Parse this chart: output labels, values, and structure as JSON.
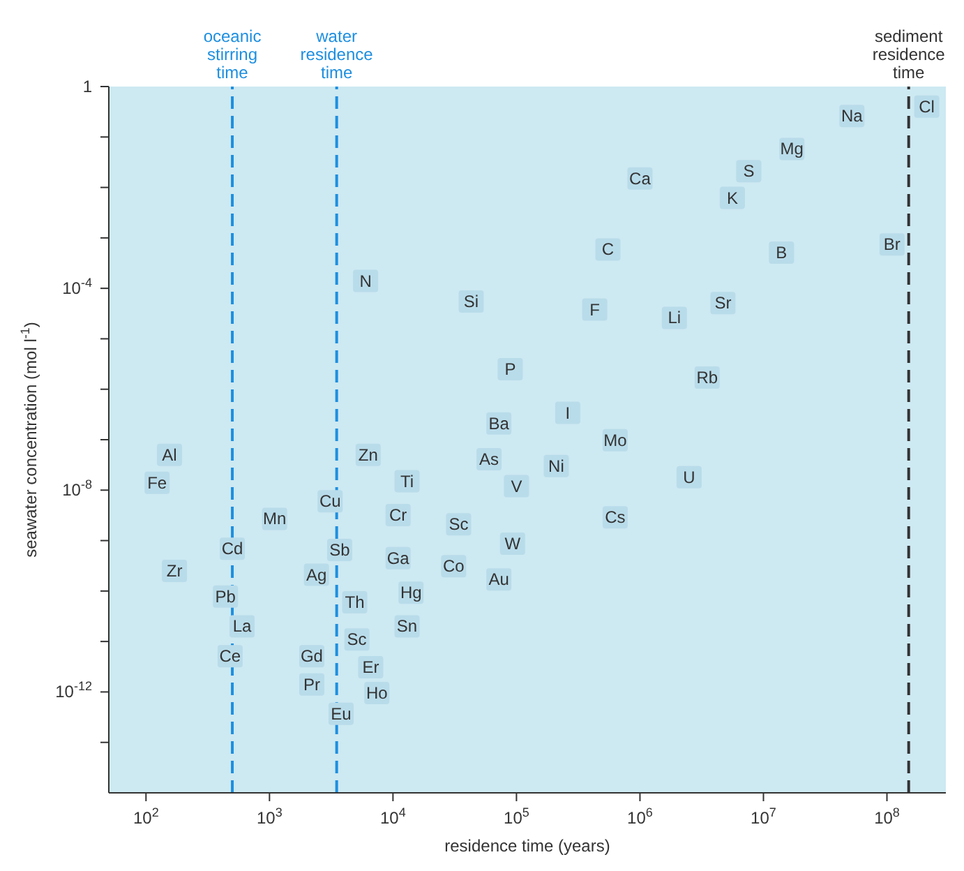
{
  "chart_data": {
    "type": "scatter",
    "xlabel": "residence time (years)",
    "ylabel": "seawater concentration (mol l$^{-1}$)",
    "log": "xy",
    "grid": false,
    "legend": false,
    "marker": "square",
    "xlim": [
      50,
      300000000
    ],
    "ylim": [
      1e-14,
      1
    ],
    "xticks": [
      {
        "value": 100,
        "label": "10$^{2}$"
      },
      {
        "value": 1000,
        "label": "10$^{3}$"
      },
      {
        "value": 10000,
        "label": "10$^{4}$"
      },
      {
        "value": 100000,
        "label": "10$^{5}$"
      },
      {
        "value": 1000000,
        "label": "10$^{6}$"
      },
      {
        "value": 10000000,
        "label": "10$^{7}$"
      },
      {
        "value": 100000000,
        "label": "10$^{8}$"
      }
    ],
    "yticks": [
      {
        "value": 1,
        "label": "1"
      },
      {
        "value": 0.1,
        "label": null
      },
      {
        "value": 0.01,
        "label": null
      },
      {
        "value": 0.001,
        "label": null
      },
      {
        "value": 0.0001,
        "label": "10$^{-4}$"
      },
      {
        "value": 1e-05,
        "label": null
      },
      {
        "value": 1e-06,
        "label": null
      },
      {
        "value": 1e-07,
        "label": null
      },
      {
        "value": 1e-08,
        "label": "10$^{-8}$"
      },
      {
        "value": 1e-09,
        "label": null
      },
      {
        "value": 1e-10,
        "label": null
      },
      {
        "value": 1e-11,
        "label": null
      },
      {
        "value": 1e-12,
        "label": "10$^{-12}$"
      },
      {
        "value": 1e-13,
        "label": null
      }
    ],
    "ref_lines": [
      {
        "axis": "x",
        "value": 500,
        "label": "oceanic stirring time",
        "color": "#1e8fe0",
        "line_style": "dashed"
      },
      {
        "axis": "x",
        "value": 3500,
        "label": "water residence time",
        "color": "#1e8fe0",
        "line_style": "dashed"
      },
      {
        "axis": "x",
        "value": 150000000,
        "label": "sediment residence time",
        "color": "#333333",
        "line_style": "dashed"
      }
    ],
    "series": [
      {
        "color": "#b9dcea",
        "x": [
          52000000,
          210000000,
          17000000,
          7600000,
          1000000,
          5600000,
          550000,
          14000000,
          110000000,
          6000,
          43000,
          430000,
          1900000,
          4700000,
          89000,
          3500000,
          72000,
          260000,
          630000,
          155,
          6300,
          60000,
          210000,
          2500000,
          123,
          13000,
          100000,
          3100,
          1100,
          11000,
          34000,
          630000,
          500,
          3700,
          93000,
          11000,
          170,
          31000,
          72000,
          2400,
          440,
          14000,
          4900,
          600,
          13000,
          5100,
          480,
          2200,
          6600,
          2200,
          7400,
          3800
        ],
        "values": [
          0.26,
          0.4,
          0.058,
          0.021,
          0.015,
          0.0062,
          0.00059,
          0.00051,
          0.00074,
          0.00014,
          5.5e-05,
          3.8e-05,
          2.6e-05,
          5.1e-05,
          2.5e-06,
          1.7e-06,
          2.1e-07,
          3.4e-07,
          9.8e-08,
          5e-08,
          5e-08,
          4.1e-08,
          3e-08,
          1.8e-08,
          1.4e-08,
          1.5e-08,
          1.2e-08,
          6e-09,
          2.7e-09,
          3.2e-09,
          2.1e-09,
          2.9e-09,
          6.9e-10,
          6.5e-10,
          8.7e-10,
          4.5e-10,
          2.5e-10,
          3.1e-10,
          1.7e-10,
          2.1e-10,
          7.8e-11,
          9.3e-11,
          6e-11,
          2e-11,
          2e-11,
          1.1e-11,
          5.1e-12,
          5.1e-12,
          3.1e-12,
          1.4e-12,
          9.5e-13,
          3.7e-13
        ],
        "value_labels": [
          "Na",
          "Cl",
          "Mg",
          "S",
          "Ca",
          "K",
          "C",
          "B",
          "Br",
          "N",
          "Si",
          "F",
          "Li",
          "Sr",
          "P",
          "Rb",
          "Ba",
          "I",
          "Mo",
          "Al",
          "Zn",
          "As",
          "Ni",
          "U",
          "Fe",
          "Ti",
          "V",
          "Cu",
          "Mn",
          "Cr",
          "Sc",
          "Cs",
          "Cd",
          "Sb",
          "W",
          "Ga",
          "Zr",
          "Co",
          "Au",
          "Ag",
          "Pb",
          "Hg",
          "Th",
          "La",
          "Sn",
          "Sc",
          "Ce",
          "Gd",
          "Er",
          "Pr",
          "Ho",
          "Eu"
        ]
      }
    ]
  }
}
